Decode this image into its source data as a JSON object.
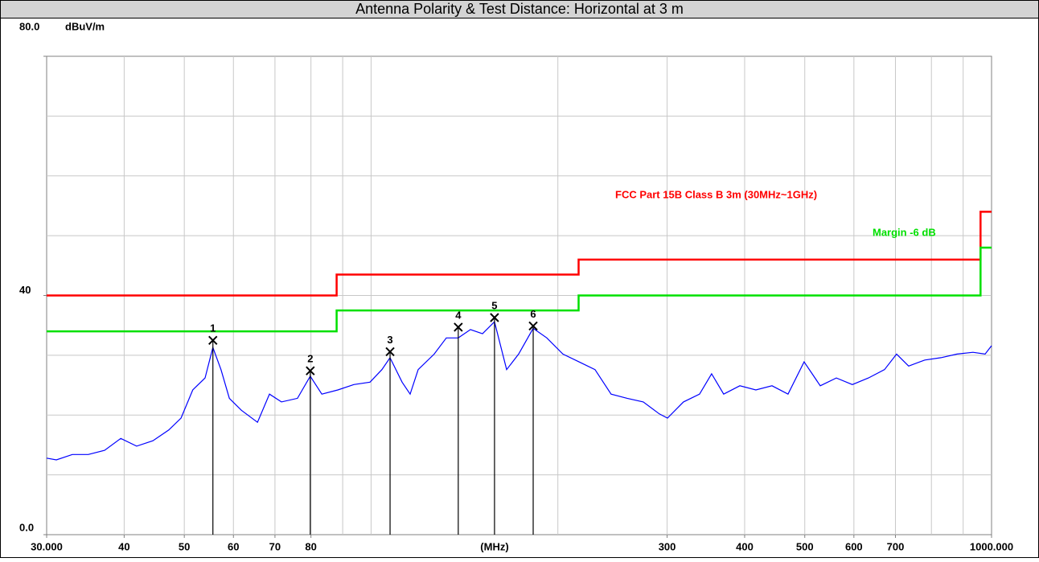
{
  "chart_data": {
    "type": "line",
    "title": "Antenna Polarity & Test Distance: Horizontal at 3 m",
    "ylabel": "dBuV/m",
    "xlabel": "(MHz)",
    "xscale": "log",
    "xlim": [
      30,
      1000
    ],
    "ylim": [
      0,
      80
    ],
    "xticks": [
      {
        "value": 30,
        "label": "30.000"
      },
      40,
      50,
      60,
      70,
      80,
      300,
      400,
      500,
      600,
      700,
      {
        "value": 1000,
        "label": "1000.000"
      }
    ],
    "xgrid": [
      40,
      50,
      60,
      70,
      80,
      90,
      100,
      200,
      300,
      400,
      500,
      600,
      700,
      800,
      900
    ],
    "yticks": [
      {
        "value": 0,
        "label": "0.0"
      },
      40,
      {
        "value": 80,
        "label": "80.0"
      }
    ],
    "ygrid": [
      10,
      20,
      30,
      40,
      50,
      60,
      70
    ],
    "grid": true,
    "series": [
      {
        "name": "FCC Part 15B Class B 3m (30MHz~1GHz)",
        "color": "#ff0000",
        "x": [
          30,
          88,
          88,
          216,
          216,
          960,
          960,
          1000
        ],
        "values": [
          40,
          40,
          43.5,
          43.5,
          46,
          46,
          54,
          54
        ]
      },
      {
        "name": "Margin -6 dB",
        "color": "#00e000",
        "x": [
          30,
          88,
          88,
          216,
          216,
          960,
          960,
          1000
        ],
        "values": [
          34,
          34,
          37.5,
          37.5,
          40,
          40,
          48,
          48
        ]
      },
      {
        "color": "#0000ff",
        "x": [
          30.0,
          31.1,
          33.0,
          35.0,
          37.2,
          39.5,
          41.9,
          44.5,
          47.2,
          49.4,
          51.6,
          54.0,
          55.6,
          57.3,
          59.1,
          61.8,
          65.6,
          68.6,
          71.7,
          76.1,
          79.8,
          83.3,
          88.4,
          93.8,
          99.6,
          104.1,
          107.3,
          112.2,
          115.6,
          119.1,
          126.4,
          132.2,
          138.2,
          144.6,
          151.2,
          158.1,
          165.4,
          172.9,
          182.5,
          192.0,
          203.8,
          216.3,
          229.6,
          243.7,
          258.7,
          274.6,
          291.5,
          300.4,
          318.8,
          338.4,
          353.9,
          370.1,
          392.9,
          417.0,
          442.7,
          469.9,
          498.8,
          529.6,
          562.1,
          596.6,
          633.3,
          672.2,
          703.0,
          735.2,
          780.5,
          828.5,
          879.5,
          933.5,
          976.3,
          1000.0
        ],
        "values": [
          12.8,
          12.5,
          13.4,
          13.4,
          14.1,
          16.1,
          14.8,
          15.7,
          17.5,
          19.5,
          24.2,
          26.2,
          31.3,
          27.6,
          22.8,
          20.8,
          18.8,
          23.5,
          22.2,
          22.8,
          26.5,
          23.5,
          24.2,
          25.1,
          25.5,
          27.6,
          29.6,
          25.5,
          23.5,
          27.6,
          30.2,
          32.9,
          32.9,
          34.3,
          33.6,
          35.6,
          27.6,
          30.2,
          34.5,
          32.9,
          30.2,
          28.9,
          27.6,
          23.5,
          22.8,
          22.2,
          20.2,
          19.5,
          22.2,
          23.5,
          26.9,
          23.5,
          24.9,
          24.2,
          24.9,
          23.5,
          28.9,
          24.9,
          26.2,
          25.1,
          26.2,
          27.6,
          30.2,
          28.2,
          29.2,
          29.6,
          30.2,
          30.5,
          30.2,
          31.6
        ]
      }
    ],
    "markers": {
      "labels": [
        1,
        2,
        3,
        4,
        5,
        6
      ],
      "x": [
        55.6,
        79.8,
        107.3,
        138.2,
        158.1,
        182.5
      ],
      "values": [
        32.5,
        27.4,
        30.6,
        34.7,
        36.3,
        34.9
      ]
    }
  }
}
